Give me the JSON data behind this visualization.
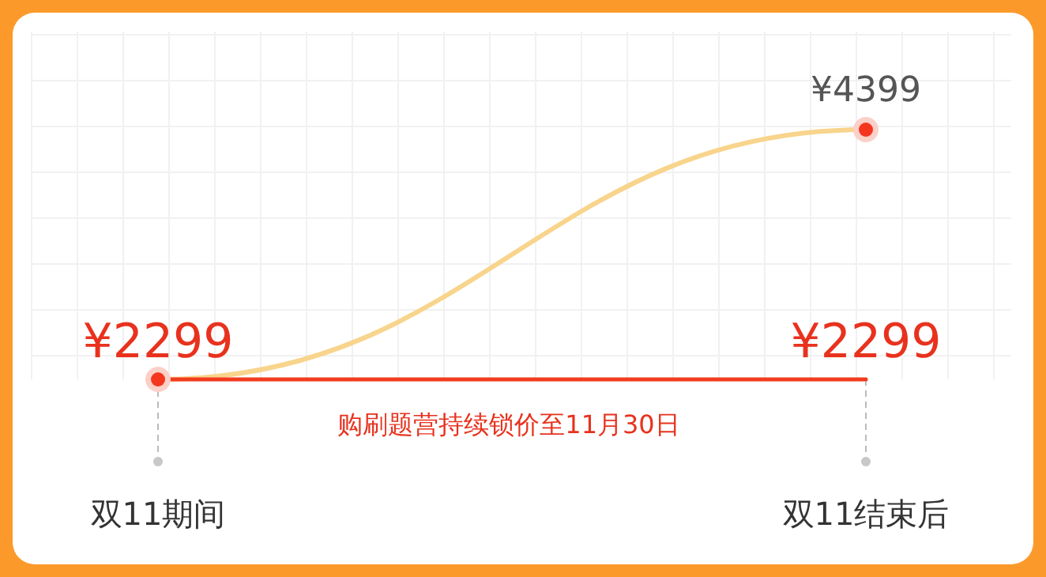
{
  "chart_data": {
    "type": "line",
    "categories": [
      "双11期间",
      "双11结束后"
    ],
    "series": [
      {
        "name": null,
        "color": "#f8d48c",
        "values": [
          2299,
          4399
        ],
        "value_labels": [
          null,
          "¥4399"
        ],
        "marker": "circle"
      },
      {
        "name": null,
        "color": "#f23c1e",
        "values": [
          2299,
          2299
        ],
        "value_labels": [
          "¥2299",
          "¥2299"
        ]
      }
    ],
    "annotations": [
      "购刷题营持续锁价至11月30日"
    ],
    "grid": true
  }
}
